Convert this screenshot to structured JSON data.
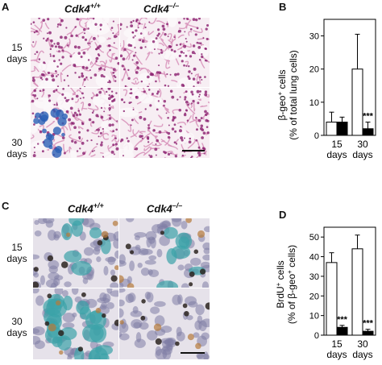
{
  "panelA": {
    "letter": "A",
    "col_left": "Cdk4",
    "col_left_sup": "+/+",
    "col_right": "Cdk4",
    "col_right_sup": "–/–",
    "row1": [
      "15",
      "days"
    ],
    "row2": [
      "30",
      "days"
    ]
  },
  "panelB": {
    "letter": "B",
    "ylabel_line1": "β-geo",
    "ylabel_sup": "+",
    "ylabel_line1b": " cells",
    "ylabel_line2": "(% of total lung cells)"
  },
  "panelC": {
    "letter": "C",
    "col_left": "Cdk4",
    "col_left_sup": "+/+",
    "col_right": "Cdk4",
    "col_right_sup": "–/–",
    "row1": [
      "15",
      "days"
    ],
    "row2": [
      "30",
      "days"
    ]
  },
  "panelD": {
    "letter": "D",
    "ylabel_line1": "BrdU",
    "ylabel_sup1": "+",
    "ylabel_line1b": " cells",
    "ylabel_line2a": "(% of β-geo",
    "ylabel_sup2": "+",
    "ylabel_line2b": " cells)"
  },
  "colors": {
    "wt_bar": "#ffffff",
    "ko_bar": "#000000",
    "he_bg": "#f4e4ec",
    "he_nuclei": "#8a1e6e",
    "xgal": "#2a5fb5"
  },
  "chart_data": [
    {
      "type": "bar",
      "panel": "B",
      "categories": [
        [
          "15",
          "days"
        ],
        [
          "30",
          "days"
        ]
      ],
      "series": [
        {
          "values": [
            4,
            20
          ],
          "errors": [
            3,
            10.5
          ],
          "color": "#ffffff"
        },
        {
          "values": [
            4,
            2
          ],
          "errors": [
            1.5,
            2
          ],
          "color": "#000000"
        }
      ],
      "significance": [
        "",
        "***"
      ],
      "ylim": [
        0,
        35
      ],
      "yticks": [
        0,
        10,
        20,
        30
      ]
    },
    {
      "type": "bar",
      "panel": "D",
      "categories": [
        [
          "15",
          "days"
        ],
        [
          "30",
          "days"
        ]
      ],
      "series": [
        {
          "values": [
            37,
            44
          ],
          "errors": [
            5,
            7
          ],
          "color": "#ffffff"
        },
        {
          "values": [
            4,
            2
          ],
          "errors": [
            1,
            1
          ],
          "color": "#000000"
        }
      ],
      "significance": [
        "***",
        "***"
      ],
      "ylim": [
        0,
        55
      ],
      "yticks": [
        0,
        10,
        20,
        30,
        40,
        50
      ]
    }
  ]
}
